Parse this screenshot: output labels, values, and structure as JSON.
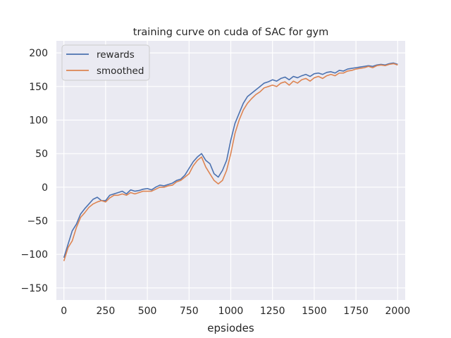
{
  "chart_data": {
    "type": "line",
    "title": "training curve on cuda of SAC for gym",
    "xlabel": "epsiodes",
    "ylabel": "",
    "xlim": [
      -45,
      2045
    ],
    "ylim": [
      -168,
      218
    ],
    "xticks": [
      0,
      250,
      500,
      750,
      1000,
      1250,
      1500,
      1750,
      2000
    ],
    "yticks": [
      -150,
      -100,
      -50,
      0,
      50,
      100,
      150,
      200
    ],
    "grid": true,
    "legend_position": "top-left",
    "series": [
      {
        "name": "rewards",
        "color": "#4c72b0",
        "x": [
          0,
          25,
          50,
          75,
          100,
          125,
          150,
          175,
          200,
          225,
          250,
          275,
          300,
          325,
          350,
          375,
          400,
          425,
          450,
          475,
          500,
          525,
          550,
          575,
          600,
          625,
          650,
          675,
          700,
          725,
          750,
          775,
          800,
          825,
          850,
          875,
          900,
          925,
          950,
          975,
          1000,
          1025,
          1050,
          1075,
          1100,
          1125,
          1150,
          1175,
          1200,
          1225,
          1250,
          1275,
          1300,
          1325,
          1350,
          1375,
          1400,
          1425,
          1450,
          1475,
          1500,
          1525,
          1550,
          1575,
          1600,
          1625,
          1650,
          1675,
          1700,
          1725,
          1750,
          1775,
          1800,
          1825,
          1850,
          1875,
          1900,
          1925,
          1950,
          1975,
          2000
        ],
        "values": [
          -105,
          -85,
          -65,
          -55,
          -40,
          -32,
          -25,
          -18,
          -15,
          -20,
          -20,
          -12,
          -10,
          -8,
          -6,
          -10,
          -4,
          -6,
          -5,
          -3,
          -2,
          -4,
          0,
          3,
          2,
          4,
          6,
          10,
          12,
          18,
          28,
          38,
          45,
          50,
          40,
          35,
          20,
          15,
          25,
          40,
          70,
          95,
          110,
          125,
          135,
          140,
          145,
          150,
          155,
          157,
          160,
          158,
          162,
          164,
          160,
          165,
          163,
          166,
          168,
          165,
          169,
          170,
          168,
          171,
          172,
          170,
          174,
          173,
          176,
          177,
          178,
          179,
          180,
          181,
          180,
          182,
          183,
          182,
          184,
          185,
          183
        ]
      },
      {
        "name": "smoothed",
        "color": "#dd8452",
        "x": [
          0,
          25,
          50,
          75,
          100,
          125,
          150,
          175,
          200,
          225,
          250,
          275,
          300,
          325,
          350,
          375,
          400,
          425,
          450,
          475,
          500,
          525,
          550,
          575,
          600,
          625,
          650,
          675,
          700,
          725,
          750,
          775,
          800,
          825,
          850,
          875,
          900,
          925,
          950,
          975,
          1000,
          1025,
          1050,
          1075,
          1100,
          1125,
          1150,
          1175,
          1200,
          1225,
          1250,
          1275,
          1300,
          1325,
          1350,
          1375,
          1400,
          1425,
          1450,
          1475,
          1500,
          1525,
          1550,
          1575,
          1600,
          1625,
          1650,
          1675,
          1700,
          1725,
          1750,
          1775,
          1800,
          1825,
          1850,
          1875,
          1900,
          1925,
          1950,
          1975,
          2000
        ],
        "values": [
          -110,
          -90,
          -80,
          -60,
          -45,
          -38,
          -30,
          -25,
          -22,
          -20,
          -22,
          -16,
          -12,
          -12,
          -10,
          -12,
          -8,
          -10,
          -8,
          -6,
          -6,
          -6,
          -3,
          0,
          0,
          2,
          3,
          8,
          10,
          15,
          20,
          32,
          40,
          45,
          30,
          20,
          10,
          5,
          10,
          25,
          50,
          80,
          100,
          115,
          125,
          132,
          138,
          142,
          148,
          150,
          152,
          150,
          155,
          157,
          152,
          158,
          155,
          160,
          162,
          158,
          163,
          165,
          162,
          166,
          168,
          166,
          170,
          170,
          173,
          174,
          176,
          177,
          178,
          180,
          178,
          181,
          182,
          181,
          183,
          184,
          182
        ]
      }
    ]
  }
}
